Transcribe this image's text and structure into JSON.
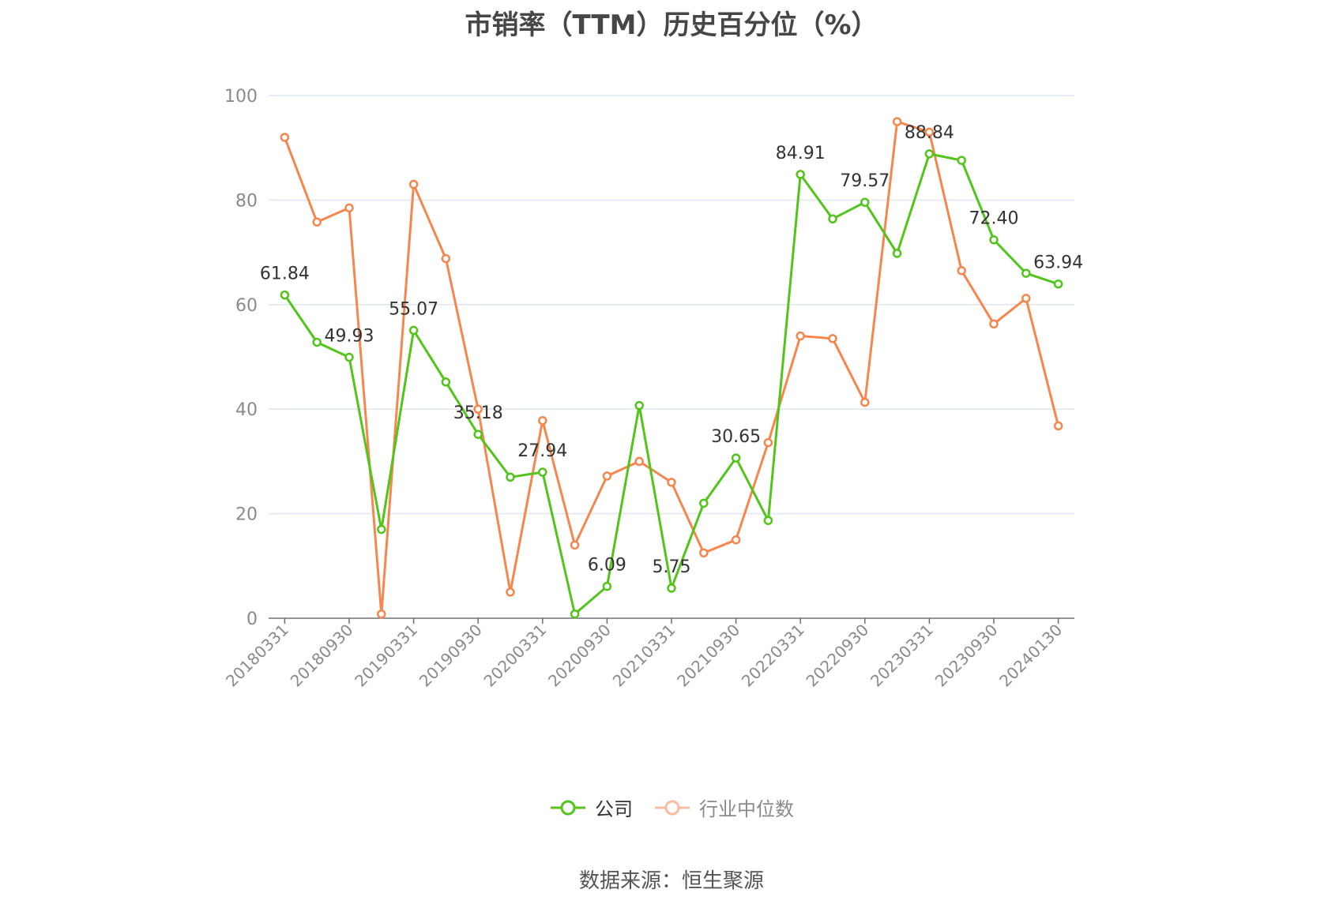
{
  "chart_data": {
    "type": "line",
    "title": "市销率（TTM）历史百分位（%）",
    "x": [
      "20180331",
      "20180630",
      "20180930",
      "20181231",
      "20190331",
      "20190630",
      "20190930",
      "20191231",
      "20200331",
      "20200630",
      "20200930",
      "20201231",
      "20210331",
      "20210630",
      "20210930",
      "20211231",
      "20220331",
      "20220630",
      "20220930",
      "20221231",
      "20230331",
      "20230630",
      "20230930",
      "20231231",
      "20240130"
    ],
    "x_tick_labels": [
      "20180331",
      "20180930",
      "20190331",
      "20190930",
      "20200331",
      "20200930",
      "20210331",
      "20210930",
      "20220331",
      "20220930",
      "20230331",
      "20230930",
      "20240130"
    ],
    "ylim": [
      0,
      100
    ],
    "y_ticks": [
      0,
      20,
      40,
      60,
      80,
      100
    ],
    "grid": true,
    "legend_position": "bottom",
    "series": [
      {
        "name": "公司",
        "color": "#52c41a",
        "values": [
          61.84,
          52.8,
          49.93,
          17.0,
          55.07,
          45.2,
          35.18,
          27.0,
          27.94,
          0.8,
          6.09,
          40.7,
          5.75,
          22.0,
          30.65,
          18.7,
          84.91,
          76.4,
          79.57,
          69.8,
          88.84,
          87.6,
          72.4,
          66.0,
          63.94
        ],
        "labels": [
          "61.84",
          "",
          "49.93",
          "",
          "55.07",
          "",
          "35.18",
          "",
          "27.94",
          "",
          "6.09",
          "",
          "5.75",
          "",
          "30.65",
          "",
          "84.91",
          "",
          "79.57",
          "",
          "88.84",
          "",
          "72.40",
          "",
          "63.94"
        ]
      },
      {
        "name": "行业中位数",
        "color": "#f5874e",
        "values": [
          92.0,
          75.8,
          78.5,
          0.8,
          83.0,
          68.8,
          40.0,
          5.0,
          37.8,
          14.0,
          27.2,
          30.0,
          26.0,
          12.5,
          15.0,
          33.6,
          54.0,
          53.5,
          41.3,
          95.0,
          93.0,
          66.5,
          56.3,
          61.2,
          36.8
        ]
      }
    ]
  },
  "legend": {
    "items": [
      {
        "label": "公司",
        "color": "#52c41a"
      },
      {
        "label": "行业中位数",
        "color": "#f5874e"
      }
    ]
  },
  "footer": {
    "source": "数据来源：恒生聚源"
  }
}
